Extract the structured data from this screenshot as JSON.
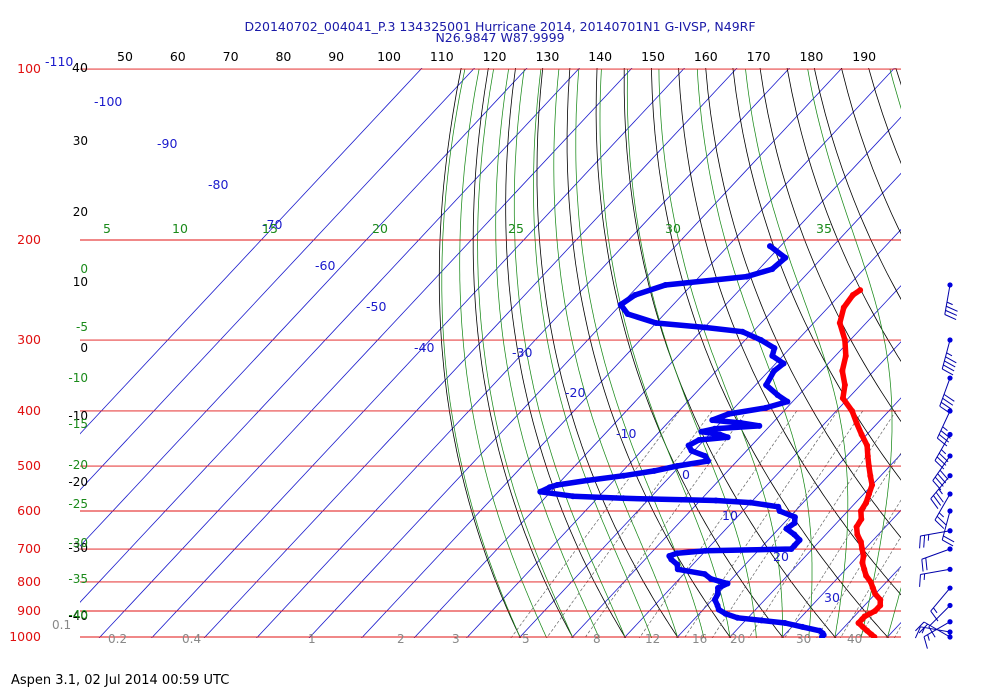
{
  "chart_data": {
    "type": "line",
    "title_line1": "D20140702_004041_P.3 134325001 Hurricane 2014, 20140701N1 G-IVSP, N49RF",
    "title_line2": "N26.9847 W87.9999",
    "footer": "Aspen 3.1, 02 Jul 2014  00:59 UTC",
    "pressure_axis": {
      "levels": [
        100,
        200,
        300,
        400,
        500,
        600,
        700,
        800,
        900,
        1000
      ],
      "labels": [
        "100",
        "200",
        "300",
        "400",
        "500",
        "600",
        "700",
        "800",
        "900",
        "1000"
      ],
      "color": "#e01010"
    },
    "top_temperature_ticks": [
      "50",
      "60",
      "70",
      "80",
      "90",
      "100",
      "110",
      "120",
      "130",
      "140",
      "150",
      "160",
      "170",
      "180",
      "190"
    ],
    "top_left_labels": [
      "-110",
      "40"
    ],
    "left_axis_labels": [
      {
        "text": "30",
        "color": "#000000"
      },
      {
        "text": "20",
        "color": "#000000"
      },
      {
        "text": "10",
        "color": "#000000"
      },
      {
        "text": "0",
        "color": "#000000"
      },
      {
        "text": "-10",
        "color": "#000000"
      },
      {
        "text": "-20",
        "color": "#000000"
      },
      {
        "text": "-30",
        "color": "#000000"
      },
      {
        "text": "-40",
        "color": "#000000"
      },
      {
        "text": "0",
        "color": "#1a8a1a"
      },
      {
        "text": "-5",
        "color": "#1a8a1a"
      },
      {
        "text": "-10",
        "color": "#1a8a1a"
      },
      {
        "text": "-15",
        "color": "#1a8a1a"
      },
      {
        "text": "-20",
        "color": "#1a8a1a"
      },
      {
        "text": "-25",
        "color": "#1a8a1a"
      },
      {
        "text": "-30",
        "color": "#1a8a1a"
      },
      {
        "text": "-35",
        "color": "#1a8a1a"
      },
      {
        "text": "-40",
        "color": "#1a8a1a"
      }
    ],
    "isotherm_labels": [
      "-100",
      "-90",
      "-80",
      "-70",
      "-60",
      "-50",
      "-40",
      "-30",
      "-20",
      "-10",
      "0",
      "10",
      "20",
      "30"
    ],
    "moist_adiabat_labels": [
      "5",
      "10",
      "15",
      "20",
      "25",
      "30",
      "35"
    ],
    "mixing_ratio_labels": [
      "0.1",
      "0.2",
      "0.4",
      "1",
      "2",
      "3",
      "5",
      "8",
      "12",
      "16",
      "20",
      "30",
      "40"
    ],
    "series": [
      {
        "name": "Temperature",
        "color": "#ff0000",
        "points": [
          [
            245,
            -37
          ],
          [
            250,
            -37.5
          ],
          [
            263,
            -37
          ],
          [
            280,
            -35
          ],
          [
            300,
            -31
          ],
          [
            320,
            -28
          ],
          [
            340,
            -26
          ],
          [
            360,
            -23
          ],
          [
            380,
            -21
          ],
          [
            400,
            -17
          ],
          [
            420,
            -14
          ],
          [
            440,
            -11
          ],
          [
            460,
            -8
          ],
          [
            480,
            -6
          ],
          [
            500,
            -4
          ],
          [
            520,
            -2
          ],
          [
            540,
            0
          ],
          [
            560,
            1
          ],
          [
            580,
            2
          ],
          [
            600,
            2.5
          ],
          [
            620,
            4
          ],
          [
            640,
            4.5
          ],
          [
            660,
            6
          ],
          [
            680,
            8
          ],
          [
            700,
            9.5
          ],
          [
            720,
            11
          ],
          [
            740,
            12
          ],
          [
            760,
            13.5
          ],
          [
            780,
            15
          ],
          [
            800,
            17
          ],
          [
            820,
            18.5
          ],
          [
            840,
            20
          ],
          [
            860,
            22
          ],
          [
            880,
            23
          ],
          [
            900,
            23
          ],
          [
            920,
            22
          ],
          [
            930,
            22
          ],
          [
            945,
            22
          ],
          [
            960,
            23.5
          ],
          [
            975,
            25
          ],
          [
            990,
            26.5
          ],
          [
            1000,
            27.5
          ]
        ]
      },
      {
        "name": "Dew point",
        "color": "#0000ee",
        "points": [
          [
            205,
            -62
          ],
          [
            215,
            -57
          ],
          [
            225,
            -57.5
          ],
          [
            232,
            -61
          ],
          [
            240,
            -75
          ],
          [
            250,
            -79
          ],
          [
            260,
            -80
          ],
          [
            270,
            -77
          ],
          [
            280,
            -70
          ],
          [
            285,
            -60
          ],
          [
            290,
            -52
          ],
          [
            300,
            -47
          ],
          [
            310,
            -43
          ],
          [
            320,
            -42
          ],
          [
            330,
            -38.5
          ],
          [
            340,
            -39
          ],
          [
            360,
            -38
          ],
          [
            375,
            -34
          ],
          [
            385,
            -31
          ],
          [
            395,
            -34
          ],
          [
            405,
            -40
          ],
          [
            415,
            -42
          ],
          [
            420,
            -36
          ],
          [
            425,
            -32
          ],
          [
            430,
            -40
          ],
          [
            435,
            -42
          ],
          [
            440,
            -38
          ],
          [
            445,
            -36
          ],
          [
            450,
            -41
          ],
          [
            460,
            -42
          ],
          [
            470,
            -40.5
          ],
          [
            480,
            -37
          ],
          [
            490,
            -35.5
          ],
          [
            500,
            -40.5
          ],
          [
            510,
            -44
          ],
          [
            520,
            -49
          ],
          [
            530,
            -55
          ],
          [
            540,
            -60
          ],
          [
            545,
            -61
          ],
          [
            555,
            -62
          ],
          [
            565,
            -55
          ],
          [
            570,
            -45
          ],
          [
            575,
            -27
          ],
          [
            580,
            -20
          ],
          [
            590,
            -14
          ],
          [
            600,
            -13
          ],
          [
            615,
            -9
          ],
          [
            630,
            -8
          ],
          [
            645,
            -8.5
          ],
          [
            660,
            -6
          ],
          [
            675,
            -4
          ],
          [
            690,
            -4
          ],
          [
            700,
            -4
          ],
          [
            705,
            -20
          ],
          [
            712,
            -25
          ],
          [
            720,
            -26
          ],
          [
            730,
            -25
          ],
          [
            745,
            -23
          ],
          [
            760,
            -22
          ],
          [
            775,
            -16
          ],
          [
            790,
            -14
          ],
          [
            805,
            -10
          ],
          [
            820,
            -11
          ],
          [
            840,
            -10
          ],
          [
            860,
            -9.5
          ],
          [
            880,
            -8
          ],
          [
            895,
            -7
          ],
          [
            910,
            -5
          ],
          [
            925,
            -2
          ],
          [
            935,
            3
          ],
          [
            945,
            8
          ],
          [
            960,
            12
          ],
          [
            975,
            16
          ],
          [
            985,
            17
          ],
          [
            992,
            17.5
          ],
          [
            1000,
            17.5
          ]
        ]
      }
    ],
    "wind_profile": [
      {
        "pressure": 240,
        "speed_kt": 35,
        "direction_deg": 190
      },
      {
        "pressure": 300,
        "speed_kt": 45,
        "direction_deg": 195
      },
      {
        "pressure": 350,
        "speed_kt": 40,
        "direction_deg": 200
      },
      {
        "pressure": 400,
        "speed_kt": 35,
        "direction_deg": 205
      },
      {
        "pressure": 440,
        "speed_kt": 35,
        "direction_deg": 210
      },
      {
        "pressure": 480,
        "speed_kt": 40,
        "direction_deg": 215
      },
      {
        "pressure": 520,
        "speed_kt": 35,
        "direction_deg": 220
      },
      {
        "pressure": 560,
        "speed_kt": 25,
        "direction_deg": 210
      },
      {
        "pressure": 600,
        "speed_kt": 20,
        "direction_deg": 195
      },
      {
        "pressure": 650,
        "speed_kt": 25,
        "direction_deg": 260
      },
      {
        "pressure": 700,
        "speed_kt": 20,
        "direction_deg": 250
      },
      {
        "pressure": 760,
        "speed_kt": 15,
        "direction_deg": 260
      },
      {
        "pressure": 820,
        "speed_kt": 15,
        "direction_deg": 220
      },
      {
        "pressure": 880,
        "speed_kt": 10,
        "direction_deg": 225
      },
      {
        "pressure": 940,
        "speed_kt": 15,
        "direction_deg": 240
      },
      {
        "pressure": 980,
        "speed_kt": 15,
        "direction_deg": 280
      },
      {
        "pressure": 1000,
        "speed_kt": 20,
        "direction_deg": 300
      }
    ],
    "colors": {
      "isobar": "#e01010",
      "isotherm": "#1a1acc",
      "dry_adiabat": "#000000",
      "moist_adiabat": "#1a8a1a",
      "mixing_ratio": "#666666",
      "title": "#1a1aa8"
    },
    "grid": true
  }
}
